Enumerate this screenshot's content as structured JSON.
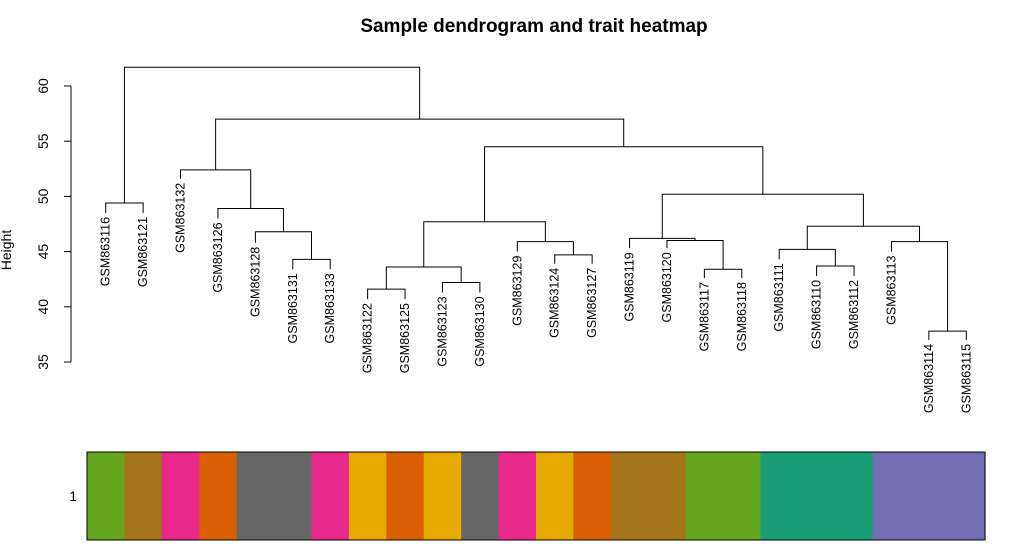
{
  "chart_data": {
    "type": "dendrogram",
    "title": "Sample dendrogram and trait heatmap",
    "ylabel": "Height",
    "ylim": [
      35,
      62
    ],
    "yticks": [
      35,
      40,
      45,
      50,
      55,
      60
    ],
    "leaves": [
      "GSM863116",
      "GSM863121",
      "GSM863132",
      "GSM863126",
      "GSM863128",
      "GSM863131",
      "GSM863133",
      "GSM863122",
      "GSM863125",
      "GSM863123",
      "GSM863130",
      "GSM863129",
      "GSM863124",
      "GSM863127",
      "GSM863119",
      "GSM863120",
      "GSM863117",
      "GSM863118",
      "GSM863111",
      "GSM863110",
      "GSM863112",
      "GSM863113",
      "GSM863114",
      "GSM863115"
    ],
    "leaf_heights": [
      48.5,
      48.5,
      51.6,
      48.0,
      45.8,
      43.4,
      43.4,
      40.7,
      40.7,
      41.3,
      41.3,
      45.0,
      43.9,
      43.9,
      45.3,
      45.3,
      42.6,
      42.6,
      44.3,
      42.8,
      42.8,
      45.0,
      37.0,
      37.0
    ],
    "merges": [
      {
        "left": "L0",
        "right": "L1",
        "height": 49.4
      },
      {
        "left": "L5",
        "right": "L6",
        "height": 44.3
      },
      {
        "left": "L4",
        "right": "M1",
        "height": 46.8
      },
      {
        "left": "L3",
        "right": "M2",
        "height": 48.9
      },
      {
        "left": "L2",
        "right": "M3",
        "height": 52.4
      },
      {
        "left": "L7",
        "right": "L8",
        "height": 41.6
      },
      {
        "left": "L9",
        "right": "L10",
        "height": 42.2
      },
      {
        "left": "M5",
        "right": "M6",
        "height": 43.6
      },
      {
        "left": "L12",
        "right": "L13",
        "height": 44.7
      },
      {
        "left": "L11",
        "right": "M8",
        "height": 45.9
      },
      {
        "left": "M7",
        "right": "M9",
        "height": 47.7
      },
      {
        "left": "L16",
        "right": "L17",
        "height": 43.4
      },
      {
        "left": "L15",
        "right": "M11",
        "height": 46.0
      },
      {
        "left": "L14",
        "right": "M12",
        "height": 46.2
      },
      {
        "left": "L19",
        "right": "L20",
        "height": 43.7
      },
      {
        "left": "L18",
        "right": "M14",
        "height": 45.2
      },
      {
        "left": "L22",
        "right": "L23",
        "height": 37.8
      },
      {
        "left": "L21",
        "right": "M16",
        "height": 45.9
      },
      {
        "left": "M15",
        "right": "M17",
        "height": 47.3
      },
      {
        "left": "M13",
        "right": "M18",
        "height": 50.2
      },
      {
        "left": "M10",
        "right": "M19",
        "height": 54.5
      },
      {
        "left": "M4",
        "right": "M20",
        "height": 57.0
      },
      {
        "left": "M0",
        "right": "M21",
        "height": 61.7
      }
    ],
    "trait_row_label": "1",
    "trait_colors": [
      "#66a61e",
      "#a6761d",
      "#e7298a",
      "#d95f02",
      "#666666",
      "#666666",
      "#e7298a",
      "#e6ab02",
      "#d95f02",
      "#e6ab02",
      "#666666",
      "#e7298a",
      "#e6ab02",
      "#d95f02",
      "#a6761d",
      "#a6761d",
      "#66a61e",
      "#66a61e",
      "#1b9e77",
      "#1b9e77",
      "#1b9e77",
      "#7570b3",
      "#7570b3",
      "#7570b3"
    ]
  }
}
